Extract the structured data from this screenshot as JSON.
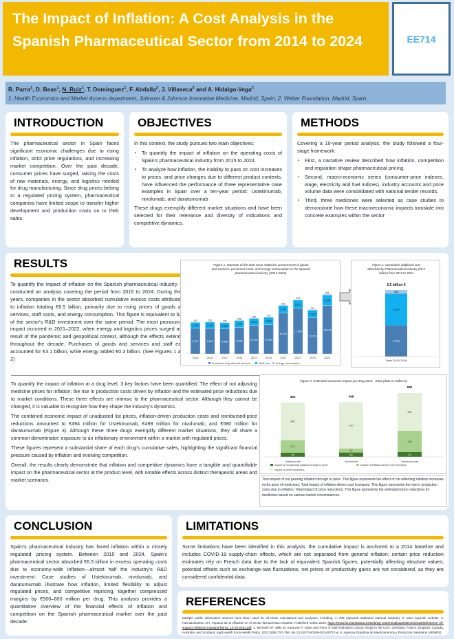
{
  "header": {
    "title": "The Impact of Inflation: A Cost Analysis in the Spanish Pharmaceutical Sector from 2014 to 2024",
    "code": "EE714",
    "authors": [
      {
        "name": "R. Parra",
        "sup": "1"
      },
      {
        "name": "D. Beas",
        "sup": "1"
      },
      {
        "name": "N. Ruiz",
        "sup": "1"
      },
      {
        "name": "T. Dominguez",
        "sup": "1"
      },
      {
        "name": "F. Abdalla",
        "sup": "2"
      },
      {
        "name": "J. Villaseca",
        "sup": "2"
      },
      {
        "name": "A. Hidalgo-Vega",
        "sup": "2"
      }
    ],
    "affiliations": "1. Health Economics and Market Access department, Johnson & Johnson Innovative Medicine, Madrid, Spain; 2. Weber Foundation, Madrid, Spain."
  },
  "introduction": {
    "heading": "INTRODUCTION",
    "text": "The pharmaceutical sector in Spain faces significant economic challenges due to rising inflation, strict price regulations, and increasing market competition. Over the past decade, consumer prices have surged, raising the costs of raw materials, energy, and logistics needed for drug manufacturing. Since drug prices belong to a regulated pricing system, pharmaceutical companies have limited scope to transfer higher development and production costs on to their sales."
  },
  "objectives": {
    "heading": "OBJECTIVES",
    "intro": "In this context, the study pursues two main objectives:",
    "items": [
      "To quantify the impact of inflation on the operating costs of Spain's pharmaceutical industry from 2015 to 2024.",
      "To analyze how inflation, the inability to pass on cost increases to prices, and price changes due to different product contexts, have influenced the performance of three representative case examples in Spain over a ten-year period: Ustekinumab, nivolumab, and daratumumab"
    ],
    "outro": "These drugs exemplify different market situations and have been selected for their relevance and diversity of indications and competitive dynamics."
  },
  "methods": {
    "heading": "METHODS",
    "intro": "Covering a 10-year period analysis, the study followed a four-stage framework:",
    "items": [
      "First, a narrative review described how inflation, competition and regulation shape pharmaceutical pricing.",
      "Second, macro-economic series (consumer-price indexes, wage, electricity and fuel indices), industry accounts and price volume data were consolidated with national tender records.",
      "Third, three medicines were selected as case studies to demonstrate how these macroeconomic impacts translate into concrete examples within the sector"
    ]
  },
  "results": {
    "heading": "RESULTS",
    "p1": "To quantify the impact of inflation on the Spanish pharmaceutical industry, we conducted an analysis covering the period from 2015 to 2024. During these years, companies in the sector absorbed cumulative excess costs attributable to inflation totaling €6.5 billion, primarily due to rising prices of goods and services, staff costs, and energy consumption. This figure is equivalent to 52% of the sector's R&D investment over the same period. The most pronounced impact occurred in 2021–2022, when energy and logistics prices surged as a result of the pandemic and geopolitical context, although the effects extended throughout the decade. Purchases of goods and services and staff each accounted for €3.1 billion, while energy added €0.3 billion. (See Figures 1 and 2)",
    "p2": "To quantify the impact of inflation at a drug level, 3 key factors have been quantified: The effect of not adjusting medicine prices for inflation; the rise in production costs driven by inflation and the estimated price reductions due to market conditions. These three effects are intrinsic to the pharmaceutical sector. Although they cannot be changed, it is valuable to recognize how they shape the industry's dynamics.",
    "p3": "The combined economic impact of unadjusted list prices, inflation-driven production costs and reimbursed-price reductions amounted to €494 million for Ustekinumab; €498 million for nivolumab; and €580 million for daratumumab (Figure 3). Although these three drugs exemplify different market situations, they all share a common denominator: exposure to an inflationary environment within a market with regulated prices.",
    "p4": "These figures represent a substantial share of each drug's cumulative sales, highlighting the significant financial pressure caused by inflation and evolving competition.",
    "p5": "Overall, the results clearly demonstrate that inflation and competitive dynamics have a tangible and quantifiable impact on the pharmaceutical sector at the product level, with notable effects across distinct therapeutic areas and market scenarios.",
    "fig3_caption": "Total impact of not passing inflation through to price: This figure represents the effect of not reflecting inflation increases in the price of medicines; Total impact of inflation-driven cost increases: This figure represents the rise in production costs due to inflation; Total impact of price reductions: This figure represents the estimated price reductions for medicines based on various market circumstances."
  },
  "conclusion": {
    "heading": "CONCLUSION",
    "text": "Spain's pharmaceutical industry has faced inflation within a closely regulated pricing system. Between 2015 and 2024, Spain's pharmaceutical sector absorbed €6.5 billion in excess operating costs due to economy-wide inflation—almost half the industry's R&D investment. Case studies of Ustekinumab, nivolumab, and daratumumab illustrate how inflation, limited flexibility to adjust regulated prices, and competitive repricing, together compressed margins by €500–600 million per drug. This analysis provides a quantitative overview of the financial effects of inflation and competition on the Spanish pharmaceutical market over the past decade."
  },
  "limitations": {
    "heading": "LIMITATIONS",
    "text": "Some limitations have been identified in this analysis: the cumulative impact is anchored to a 2014 baseline and includes COVID-19 supply-chain effects, which are not separated from general inflation; certain price reduction estimates rely on French data due to the lack of equivalent Spanish figures, potentially affecting absolute values; potential offsets such as exchange-rate fluctuations, net prices or productivity gains are not considered, as they are considered confidential data."
  },
  "references": {
    "heading": "REFERENCES",
    "text_a": "Multiple public information sources have been used for all these calculations and analyses, including: 1. INE (Spanish statistical national institute); 2. MoH Spanish website; 3. Farmaindustria, AFI. Impacto de la inflación en el sector farmacéutico español. Published online 2023. ",
    "link": "https://www.farmaindustria.es/web/wp-content/uploads/sites/2/2023/06/Informe-Afi-impacto-inflacion-industria-farma_13-03-2023.pdf",
    "text_b": "; 4. Michaeli DT, Mills M, Kanavos P. Value and Price of Multi-indication Cancer Drugs in the USA, Germany, France, England, Canada, Australia, and Scotland. Appl Health Econ Health Policy. 2022;20(5):757-768. doi:10.1007/s40258-022-00737-w; 5. Agencia Española de Medicamentos y Productos Sanitarios (AEMPS)"
  },
  "colors": {
    "accent": "#f2b900",
    "purchases": "#4a7fb5",
    "staff": "#12b0ef",
    "energy": "#a8c4e6",
    "d1": "#3d7a2a",
    "d2": "#a9d18e",
    "d3": "#e3efd9"
  },
  "chart_data": [
    {
      "type": "bar",
      "stacked": true,
      "title": "Figure 1. Estimate of the total costs related to procurement of goods and services, personnel costs, and energy consumption in the Spanish pharmaceutical industry (2015-2024).",
      "categories": [
        "2015",
        "2016",
        "2017",
        "2018",
        "2019",
        "2020",
        "2021",
        "2022",
        "2023",
        "2024"
      ],
      "series": [
        {
          "name": "Purchases of goods and services",
          "values": [
            9747,
            9667,
            9488,
            9976,
            10742,
            11053,
            15532,
            17285,
            13720,
            18379
          ]
        },
        {
          "name": "Staff cost",
          "values": [
            2230,
            2437,
            2383,
            2701,
            2725,
            2862,
            2877,
            3173,
            2929,
            4036
          ]
        },
        {
          "name": "Energy consumption",
          "values": [
            153,
            150,
            145,
            158,
            169,
            175,
            211,
            279,
            211,
            281
          ]
        }
      ],
      "legend": "bottom"
    },
    {
      "type": "bar",
      "stacked": true,
      "title": "Figure 2. Cumulative additional cost absorbed by Pharmaceutical Industry (€6.5 billion) from 2015 to 2024",
      "total_label": "6.5 billion €",
      "categories": [
        "Totals (2015-2024)"
      ],
      "series": [
        {
          "name": "Purchases of goods and services",
          "values": [
            3064
          ]
        },
        {
          "name": "Staff cost",
          "values": [
            3097
          ]
        },
        {
          "name": "Energy consumption",
          "values": [
            348
          ]
        }
      ]
    },
    {
      "type": "bar",
      "stacked": true,
      "title": "Figure 3: Estimated economic impact per drug 2015 - 2024 (data in million €)",
      "categories": [
        "Ustekinumab",
        "Nivolumab",
        "Daratumumab"
      ],
      "totals": [
        494,
        498,
        580
      ],
      "series": [
        {
          "name": "Impact of not passing inflation through to price",
          "values": [
            39,
            40,
            44
          ]
        },
        {
          "name": "Impact of inflation-driven cost increases",
          "values": [
            113,
            37,
            194
          ]
        },
        {
          "name": "Impact of price reductions",
          "values": [
            342,
            420,
            342
          ]
        }
      ],
      "legend": "bottom"
    }
  ]
}
